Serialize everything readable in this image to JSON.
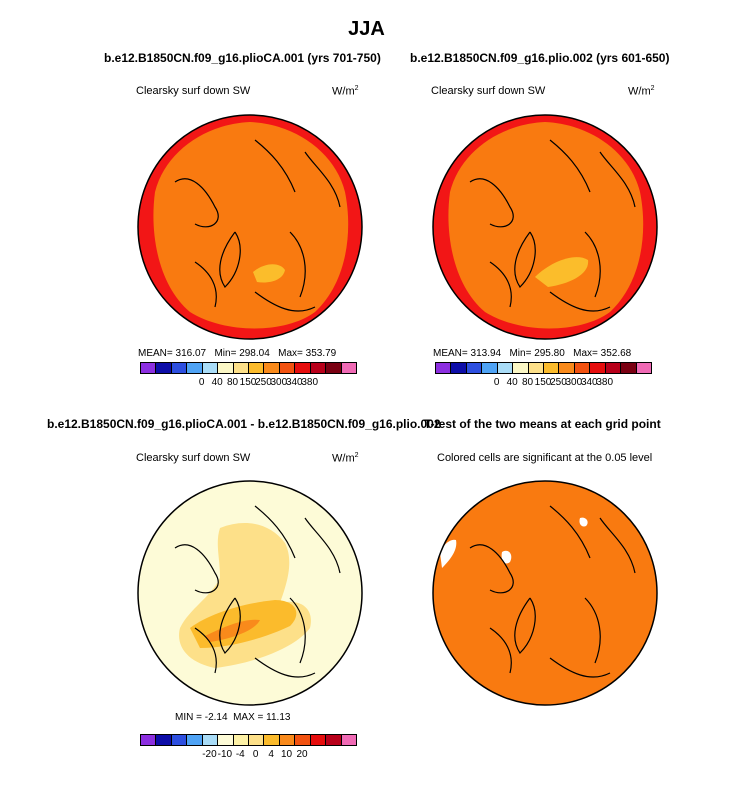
{
  "page": {
    "title": "JJA"
  },
  "chart_data": [
    {
      "type": "heatmap",
      "projection": "north-polar-stereographic",
      "title": "b.e12.B1850CN.f09_g16.plioCA.001 (yrs 701-750)",
      "field": "Clearsky surf down SW",
      "units": "W/m",
      "units_exp": "2",
      "stats": {
        "mean_label": "MEAN=",
        "mean": "316.07",
        "min_label": "Min=",
        "min": "298.04",
        "max_label": "Max=",
        "max": "353.79"
      },
      "colorbar": {
        "colors": [
          "#8c2fe0",
          "#0d0da8",
          "#2d4fe0",
          "#4fa3f5",
          "#a9dcf7",
          "#fbf7c5",
          "#fde089",
          "#fbbb2c",
          "#f98a1b",
          "#f25210",
          "#e60d0d",
          "#b8001a",
          "#7a0012",
          "#f06ab5"
        ],
        "ticks": [
          "0",
          "40",
          "80",
          "150",
          "250",
          "300",
          "340",
          "380"
        ]
      }
    },
    {
      "type": "heatmap",
      "projection": "north-polar-stereographic",
      "title": "b.e12.B1850CN.f09_g16.plio.002 (yrs 601-650)",
      "field": "Clearsky surf down SW",
      "units": "W/m",
      "units_exp": "2",
      "stats": {
        "mean_label": "MEAN=",
        "mean": "313.94",
        "min_label": "Min=",
        "min": "295.80",
        "max_label": "Max=",
        "max": "352.68"
      },
      "colorbar": {
        "colors": [
          "#8c2fe0",
          "#0d0da8",
          "#2d4fe0",
          "#4fa3f5",
          "#a9dcf7",
          "#fbf7c5",
          "#fde089",
          "#fbbb2c",
          "#f98a1b",
          "#f25210",
          "#e60d0d",
          "#b8001a",
          "#7a0012",
          "#f06ab5"
        ],
        "ticks": [
          "0",
          "40",
          "80",
          "150",
          "250",
          "300",
          "340",
          "380"
        ]
      }
    },
    {
      "type": "heatmap",
      "projection": "north-polar-stereographic",
      "title": "b.e12.B1850CN.f09_g16.plioCA.001 - b.e12.B1850CN.f09_g16.plio.002",
      "field": "Clearsky surf down SW",
      "units": "W/m",
      "units_exp": "2",
      "stats": {
        "min_label": "MIN =",
        "min": "-2.14",
        "max_label": "MAX =",
        "max": "11.13"
      },
      "colorbar": {
        "colors": [
          "#8c2fe0",
          "#0d0da8",
          "#2d4fe0",
          "#4fa3f5",
          "#a9dcf7",
          "#fdfbd7",
          "#fdf1a6",
          "#fde089",
          "#fbbb2c",
          "#f98a1b",
          "#f25210",
          "#e60d0d",
          "#b8001a",
          "#f06ab5"
        ],
        "ticks": [
          "-20",
          "-10",
          "-4",
          "0",
          "4",
          "10",
          "20"
        ]
      }
    },
    {
      "type": "heatmap",
      "projection": "north-polar-stereographic",
      "title": "T-test of the two means at each grid point",
      "field": "Colored cells are significant at the 0.05 level"
    }
  ],
  "colors": {
    "band_outer": "#f21616",
    "band_inner": "#f97a10",
    "band_high": "#fbbd2b",
    "diff_background": "#fdfbd7",
    "diff_mid": "#fde089",
    "diff_high": "#fbbb2c",
    "diff_peak": "#f98a1b",
    "significant": "#f97a10"
  }
}
